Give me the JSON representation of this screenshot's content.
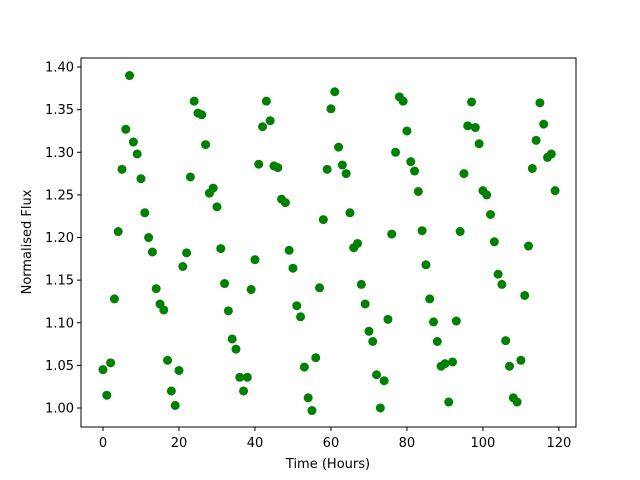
{
  "chart_data": {
    "type": "scatter",
    "xlabel": "Time (Hours)",
    "ylabel": "Normalised Flux",
    "color": "#008000",
    "xlim": [
      -5.79,
      124.5
    ],
    "ylim": [
      0.9777,
      1.4106
    ],
    "xticks": [
      0,
      20,
      40,
      60,
      80,
      100,
      120
    ],
    "yticks": [
      {
        "value": 1.0,
        "label": "1.00"
      },
      {
        "value": 1.05,
        "label": "1.05"
      },
      {
        "value": 1.1,
        "label": "1.10"
      },
      {
        "value": 1.15,
        "label": "1.15"
      },
      {
        "value": 1.2,
        "label": "1.20"
      },
      {
        "value": 1.25,
        "label": "1.25"
      },
      {
        "value": 1.3,
        "label": "1.30"
      },
      {
        "value": 1.35,
        "label": "1.35"
      },
      {
        "value": 1.4,
        "label": "1.40"
      }
    ],
    "x": [
      0,
      1,
      2,
      3,
      4,
      5,
      6,
      7,
      8,
      9,
      10,
      11,
      12,
      13,
      14,
      15,
      16,
      17,
      18,
      19,
      20,
      21,
      22,
      23,
      24,
      25,
      26,
      27,
      28,
      29,
      30,
      31,
      32,
      33,
      34,
      35,
      36,
      37,
      38,
      39,
      40,
      41,
      42,
      43,
      44,
      45,
      46,
      47,
      48,
      49,
      50,
      51,
      52,
      53,
      54,
      55,
      56,
      57,
      58,
      59,
      60,
      61,
      62,
      63,
      64,
      65,
      66,
      67,
      68,
      69,
      70,
      71,
      72,
      73,
      74,
      75,
      76,
      77,
      78,
      79,
      80,
      81,
      82,
      83,
      84,
      85,
      86,
      87,
      88,
      89,
      90,
      91,
      92,
      93,
      94,
      95,
      96,
      97,
      98,
      99,
      100,
      101,
      102,
      103,
      104,
      105,
      106,
      107,
      108,
      109,
      110,
      111,
      112,
      113,
      114,
      115,
      116,
      117,
      118,
      119
    ],
    "values": [
      1.045,
      1.015,
      1.053,
      1.128,
      1.207,
      1.28,
      1.327,
      1.39,
      1.312,
      1.298,
      1.269,
      1.229,
      1.2,
      1.183,
      1.14,
      1.122,
      1.115,
      1.056,
      1.02,
      1.003,
      1.044,
      1.166,
      1.182,
      1.271,
      1.36,
      1.346,
      1.344,
      1.309,
      1.252,
      1.258,
      1.236,
      1.187,
      1.146,
      1.114,
      1.081,
      1.069,
      1.036,
      1.02,
      1.036,
      1.139,
      1.174,
      1.286,
      1.33,
      1.36,
      1.337,
      1.284,
      1.282,
      1.245,
      1.241,
      1.185,
      1.164,
      1.12,
      1.107,
      1.048,
      1.012,
      0.997,
      1.059,
      1.141,
      1.221,
      1.28,
      1.351,
      1.371,
      1.306,
      1.285,
      1.275,
      1.229,
      1.188,
      1.193,
      1.145,
      1.122,
      1.09,
      1.078,
      1.039,
      1.0,
      1.032,
      1.104,
      1.204,
      1.3,
      1.365,
      1.36,
      1.325,
      1.289,
      1.278,
      1.254,
      1.208,
      1.168,
      1.128,
      1.101,
      1.078,
      1.049,
      1.052,
      1.007,
      1.054,
      1.102,
      1.207,
      1.275,
      1.331,
      1.359,
      1.329,
      1.31,
      1.255,
      1.25,
      1.227,
      1.195,
      1.157,
      1.145,
      1.079,
      1.049,
      1.012,
      1.007,
      1.056,
      1.132,
      1.19,
      1.281,
      1.314,
      1.358,
      1.333,
      1.294,
      1.298,
      1.255
    ]
  }
}
